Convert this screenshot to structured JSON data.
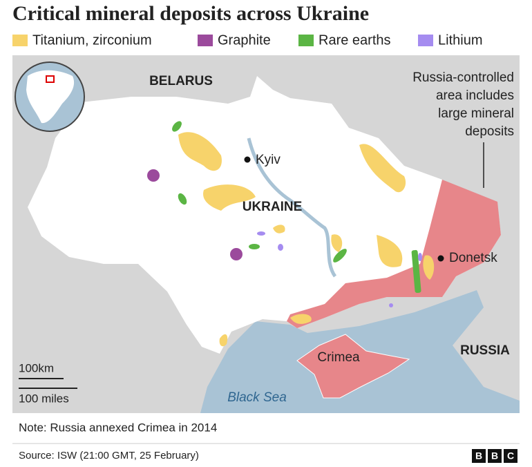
{
  "header": {
    "title": "Critical mineral deposits across Ukraine"
  },
  "legend": {
    "items": [
      {
        "label": "Titanium, zirconium",
        "color": "#f7d36b"
      },
      {
        "label": "Graphite",
        "color": "#9b4a9c"
      },
      {
        "label": "Rare earths",
        "color": "#5bb544"
      },
      {
        "label": "Lithium",
        "color": "#a58cf0"
      }
    ]
  },
  "map": {
    "labels": {
      "belarus": "BELARUS",
      "kyiv": "Kyiv",
      "ukraine": "UKRAINE",
      "donetsk": "Donetsk",
      "russia": "RUSSIA",
      "crimea": "Crimea",
      "black_sea": "Black Sea"
    },
    "annotation": {
      "lines": [
        "Russia-controlled",
        "area includes",
        "large mineral",
        "deposits"
      ]
    },
    "scale": {
      "km": "100km",
      "miles": "100 miles"
    }
  },
  "footer": {
    "note": "Note: Russia annexed Crimea in 2014",
    "source": "Source: ISW (21:00 GMT, 25 February)",
    "logo": [
      "B",
      "B",
      "C"
    ]
  }
}
